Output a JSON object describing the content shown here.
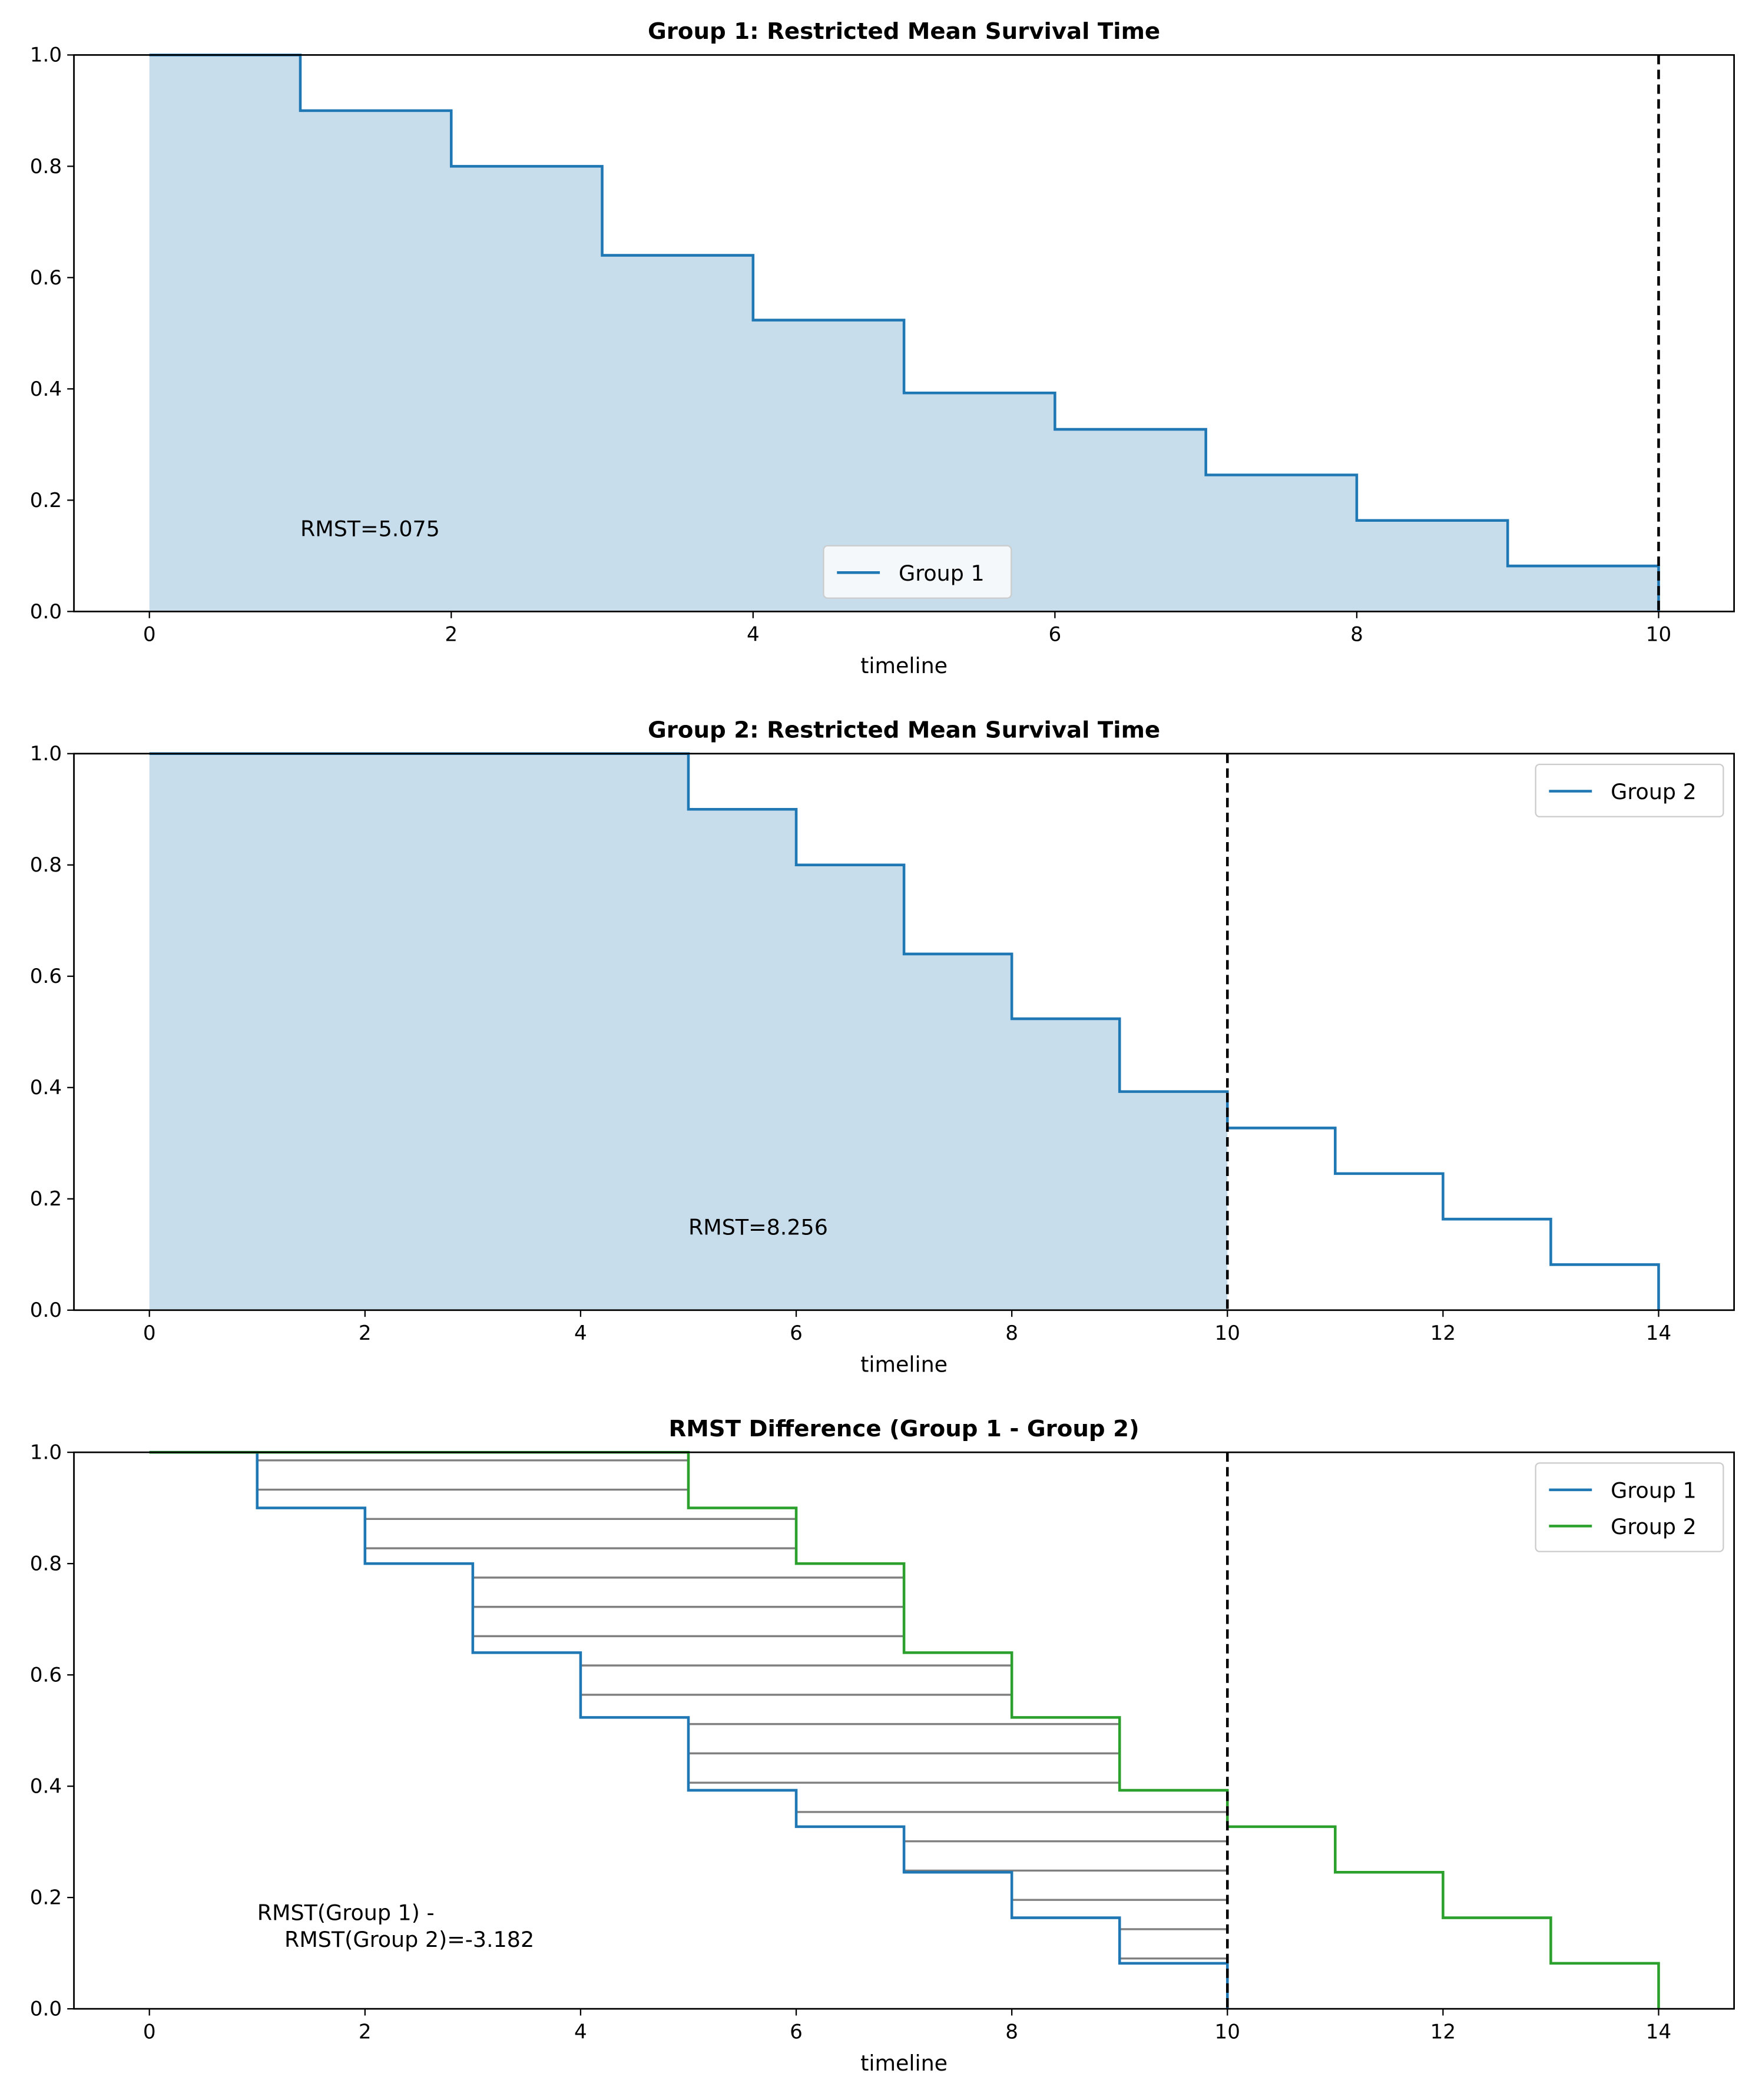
{
  "chart_data": [
    {
      "type": "line",
      "title": "Group 1: Restricted Mean Survival Time",
      "xlabel": "timeline",
      "ylabel": "",
      "xlim": [
        -0.5,
        10.5
      ],
      "ylim": [
        0,
        1
      ],
      "xticks": [
        0,
        2,
        4,
        6,
        8,
        10
      ],
      "yticks": [
        0.0,
        0.2,
        0.4,
        0.6,
        0.8,
        1.0
      ],
      "legend_position": "lower-center",
      "restriction_time": 10,
      "annotation": {
        "text": [
          "RMST=5.075"
        ],
        "x": 1,
        "y": 0.15
      },
      "series": [
        {
          "name": "Group 1",
          "color": "#1f77b4",
          "steps_x": [
            0,
            1,
            2,
            3,
            4,
            5,
            6,
            7,
            8,
            9,
            10
          ],
          "steps_y": [
            1.0,
            0.9,
            0.8,
            0.64,
            0.5236,
            0.3927,
            0.3273,
            0.2454,
            0.1636,
            0.0818,
            0.0
          ],
          "fill_to": 10
        }
      ]
    },
    {
      "type": "line",
      "title": "Group 2: Restricted Mean Survival Time",
      "xlabel": "timeline",
      "ylabel": "",
      "xlim": [
        -0.7,
        14.7
      ],
      "ylim": [
        0,
        1
      ],
      "xticks": [
        0,
        2,
        4,
        6,
        8,
        10,
        12,
        14
      ],
      "yticks": [
        0.0,
        0.2,
        0.4,
        0.6,
        0.8,
        1.0
      ],
      "legend_position": "upper-right",
      "restriction_time": 10,
      "annotation": {
        "text": [
          "RMST=8.256"
        ],
        "x": 5,
        "y": 0.15
      },
      "series": [
        {
          "name": "Group 2",
          "color": "#1f77b4",
          "steps_x": [
            0,
            5,
            6,
            7,
            8,
            9,
            10,
            11,
            12,
            13,
            14
          ],
          "steps_y": [
            1.0,
            0.9,
            0.8,
            0.64,
            0.5236,
            0.3927,
            0.3273,
            0.2454,
            0.1636,
            0.0818,
            0.0
          ],
          "fill_to": 10
        }
      ]
    },
    {
      "type": "line",
      "title": "RMST Difference (Group 1 - Group 2)",
      "xlabel": "timeline",
      "ylabel": "",
      "xlim": [
        -0.7,
        14.7
      ],
      "ylim": [
        0,
        1
      ],
      "xticks": [
        0,
        2,
        4,
        6,
        8,
        10,
        12,
        14
      ],
      "yticks": [
        0.0,
        0.2,
        0.4,
        0.6,
        0.8,
        1.0
      ],
      "legend_position": "upper-right",
      "restriction_time": 10,
      "annotation": {
        "text": [
          "RMST(Group 1) -",
          "    RMST(Group 2)=-3.182"
        ],
        "x": 1,
        "y": 0.15
      },
      "hatch_between": true,
      "series": [
        {
          "name": "Group 1",
          "color": "#1f77b4",
          "steps_x": [
            0,
            1,
            2,
            3,
            4,
            5,
            6,
            7,
            8,
            9,
            10
          ],
          "steps_y": [
            1.0,
            0.9,
            0.8,
            0.64,
            0.5236,
            0.3927,
            0.3273,
            0.2454,
            0.1636,
            0.0818,
            0.0
          ]
        },
        {
          "name": "Group 2",
          "color": "#2ca02c",
          "steps_x": [
            0,
            5,
            6,
            7,
            8,
            9,
            10,
            11,
            12,
            13,
            14
          ],
          "steps_y": [
            1.0,
            0.9,
            0.8,
            0.64,
            0.5236,
            0.3927,
            0.3273,
            0.2454,
            0.1636,
            0.0818,
            0.0
          ]
        }
      ]
    }
  ]
}
